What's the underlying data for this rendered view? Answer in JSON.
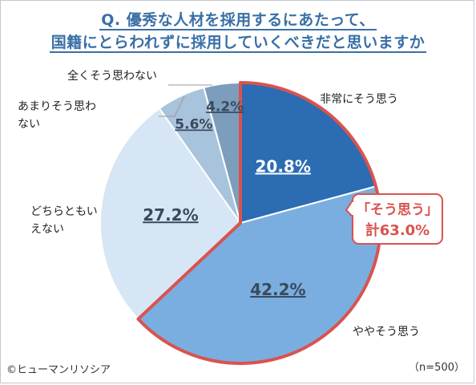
{
  "title_line1": "Q. 優秀な人材を採用するにあたって、",
  "title_line2": "国籍にとらわれずに採用していくべきだと思いますか",
  "chart_data": {
    "type": "pie",
    "slices": [
      {
        "label": "非常にそう思う",
        "value": 20.8,
        "value_label": "20.8%",
        "color": "#2b6cb3"
      },
      {
        "label": "ややそう思う",
        "value": 42.2,
        "value_label": "42.2%",
        "color": "#7aaee0"
      },
      {
        "label": "どちらともいえない",
        "value": 27.2,
        "value_label": "27.2%",
        "color": "#d7e6f4"
      },
      {
        "label": "あまりそう思わない",
        "value": 5.6,
        "value_label": "5.6%",
        "color": "#a8c3dc"
      },
      {
        "label": "全くそう思わない",
        "value": 4.2,
        "value_label": "4.2%",
        "color": "#7d9dbd"
      }
    ],
    "highlight": {
      "line1": "「そう思う」",
      "line2": "計63.0%",
      "color": "#d9534f"
    },
    "sample": "（n=500）"
  },
  "credit": "©ヒューマンリソシア"
}
